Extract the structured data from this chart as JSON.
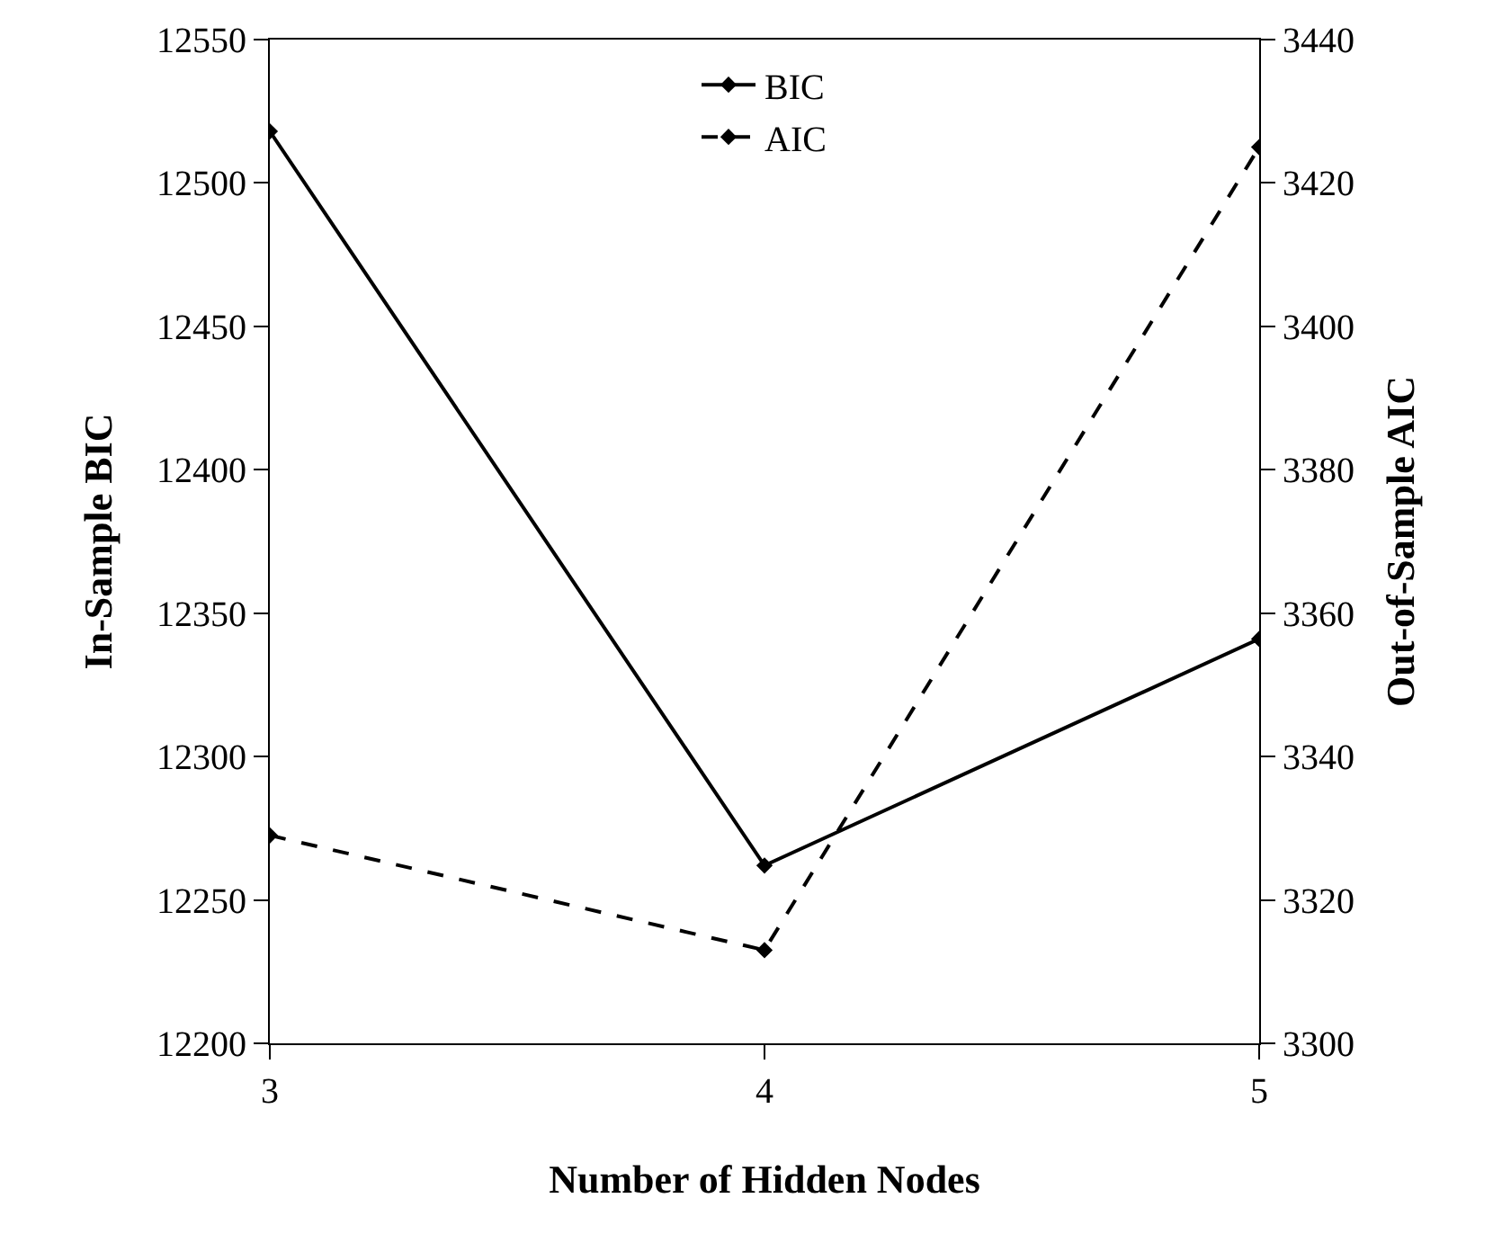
{
  "chart_data": {
    "type": "line",
    "xlabel": "Number of Hidden Nodes",
    "ylabel": "In-Sample BIC",
    "y2label": "Out-of-Sample AIC",
    "x": [
      3,
      4,
      5
    ],
    "xlim": [
      3,
      5
    ],
    "xticks": [
      3,
      4,
      5
    ],
    "ylim": [
      12200,
      12550
    ],
    "yticks": [
      12200,
      12250,
      12300,
      12350,
      12400,
      12450,
      12500,
      12550
    ],
    "y2lim": [
      3300,
      3440
    ],
    "y2ticks": [
      3300,
      3320,
      3340,
      3360,
      3380,
      3400,
      3420,
      3440
    ],
    "series": [
      {
        "name": "BIC",
        "color": "#000000",
        "values": [
          12518,
          12262,
          12341
        ],
        "line_style": "solid"
      },
      {
        "name": "AIC",
        "color": "#000000",
        "values": [
          3329,
          3313,
          3425
        ],
        "axis": "y2",
        "line_style": "dashed"
      }
    ],
    "marker": "diamond",
    "grid": false,
    "legend": "top"
  }
}
